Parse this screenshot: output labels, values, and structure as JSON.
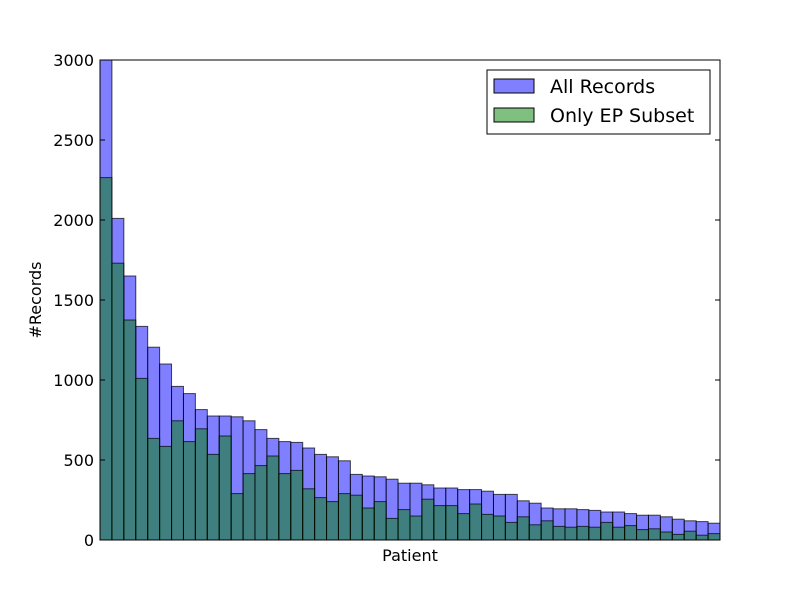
{
  "chart_data": {
    "type": "bar",
    "xlabel": "Patient",
    "ylabel": "#Records",
    "ylim": [
      0,
      3000
    ],
    "yticks": [
      0,
      500,
      1000,
      1500,
      2000,
      2500,
      3000
    ],
    "grid": false,
    "legend_position": "top-right",
    "series": [
      {
        "name": "All Records",
        "color": "#0000ff",
        "values": [
          3000,
          2010,
          1650,
          1335,
          1205,
          1100,
          960,
          915,
          815,
          775,
          775,
          770,
          745,
          690,
          635,
          615,
          610,
          575,
          535,
          520,
          495,
          410,
          400,
          395,
          380,
          355,
          355,
          345,
          325,
          325,
          315,
          315,
          305,
          285,
          285,
          245,
          230,
          200,
          195,
          195,
          190,
          185,
          175,
          175,
          165,
          155,
          155,
          145,
          130,
          120,
          115,
          105
        ]
      },
      {
        "name": "Only EP Subset",
        "color": "#008000",
        "values": [
          2265,
          1730,
          1375,
          1010,
          635,
          585,
          745,
          615,
          695,
          535,
          650,
          290,
          415,
          465,
          525,
          415,
          435,
          320,
          265,
          240,
          290,
          280,
          200,
          240,
          135,
          190,
          150,
          255,
          215,
          215,
          165,
          225,
          160,
          150,
          110,
          145,
          95,
          120,
          85,
          80,
          85,
          80,
          110,
          80,
          90,
          65,
          70,
          50,
          35,
          55,
          30,
          40
        ]
      }
    ]
  }
}
